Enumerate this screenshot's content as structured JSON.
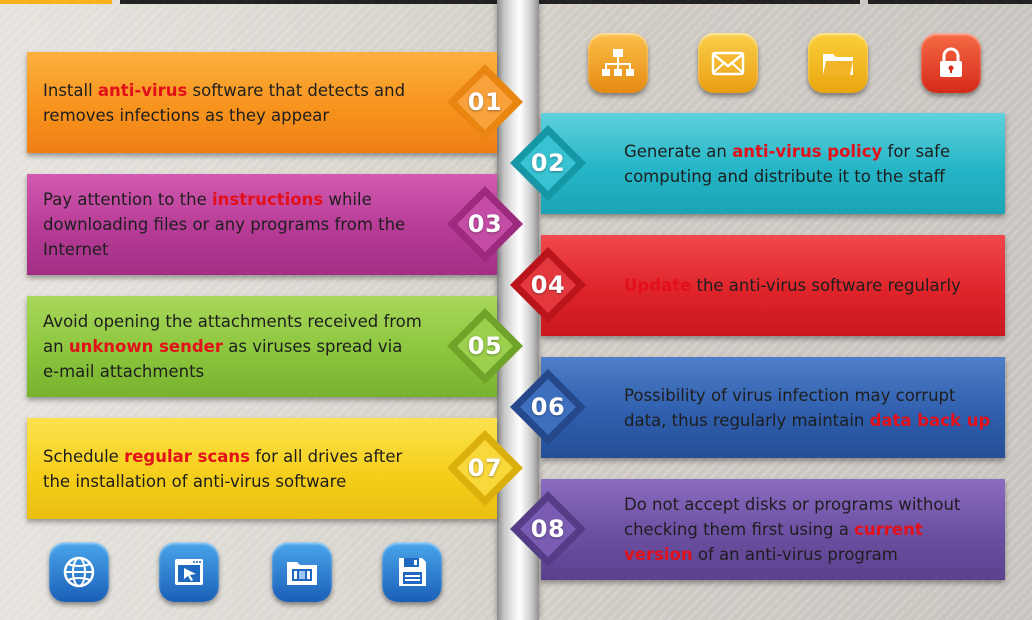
{
  "colors": {
    "orange": "#f7921e",
    "cyan": "#1bb8c9",
    "magenta": "#b93b97",
    "red": "#e0262c",
    "green": "#8cc63e",
    "blue": "#2f5fae",
    "yellow": "#f5cf1b",
    "purple": "#6b4fa1",
    "highlight": "#e3101a"
  },
  "top_icons": [
    {
      "name": "sitemap-icon"
    },
    {
      "name": "mail-icon"
    },
    {
      "name": "folder-icon"
    },
    {
      "name": "lock-icon"
    }
  ],
  "bottom_icons": [
    {
      "name": "globe-icon"
    },
    {
      "name": "cursor-window-icon"
    },
    {
      "name": "film-folder-icon"
    },
    {
      "name": "floppy-disk-icon"
    }
  ],
  "steps": [
    {
      "number": "01",
      "pre": "Install ",
      "highlight": "anti-virus",
      "post": " software that detects and removes infections as they appear"
    },
    {
      "number": "02",
      "pre": "Generate an ",
      "highlight": "anti-virus policy",
      "post": " for safe computing and distribute it to the staff"
    },
    {
      "number": "03",
      "pre": "Pay attention to the ",
      "highlight": "instructions",
      "post": " while downloading files or any programs from the Internet"
    },
    {
      "number": "04",
      "pre": "",
      "highlight": "Update",
      "post": " the anti-virus software regularly"
    },
    {
      "number": "05",
      "pre": "Avoid opening the attachments received from an ",
      "highlight": "unknown sender",
      "post": " as viruses spread via e-mail attachments"
    },
    {
      "number": "06",
      "pre": "Possibility of virus infection may corrupt data, thus regularly maintain ",
      "highlight": "data back up",
      "post": ""
    },
    {
      "number": "07",
      "pre": "Schedule ",
      "highlight": "regular scans",
      "post": " for all drives after the installation of anti-virus software"
    },
    {
      "number": "08",
      "pre": "Do not accept disks or programs without checking them first using a ",
      "highlight": "current version",
      "post": " of an anti-virus program"
    }
  ]
}
